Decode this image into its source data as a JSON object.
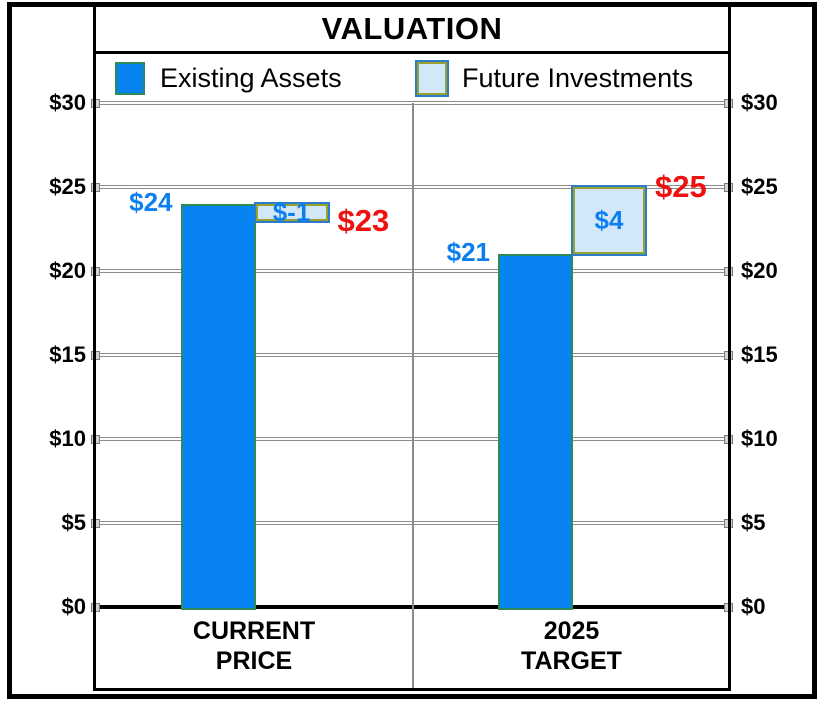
{
  "title": "VALUATION",
  "legend": {
    "items": [
      {
        "label": "Existing Assets"
      },
      {
        "label": "Future Investments"
      }
    ]
  },
  "chart_data": {
    "type": "bar",
    "subtype": "stacked-waterfall",
    "title": "VALUATION",
    "grid": true,
    "legend_position": "top",
    "y_axis_sides": "both",
    "ylim": [
      0,
      30
    ],
    "y_tick_step": 5,
    "y_tick_labels": [
      "$0",
      "$5",
      "$10",
      "$15",
      "$20",
      "$25",
      "$30"
    ],
    "categories": [
      "CURRENT PRICE",
      "2025 TARGET"
    ],
    "category_label_lines": [
      [
        "CURRENT",
        "PRICE"
      ],
      [
        "2025",
        "TARGET"
      ]
    ],
    "series": [
      {
        "name": "Existing Assets",
        "values": [
          24,
          21
        ]
      },
      {
        "name": "Future Investments",
        "values": [
          -1,
          4
        ]
      }
    ],
    "totals": [
      23,
      25
    ],
    "data_labels": {
      "existing": [
        "$24",
        "$21"
      ],
      "future": [
        "$-1",
        "$4"
      ],
      "totals": [
        "$23",
        "$25"
      ]
    }
  },
  "colors": {
    "existing_fill": "#0784f2",
    "existing_border": "#2e8b57",
    "future_fill": "#d2e8f8",
    "future_border": "#97a12b",
    "future_outline": "#2c7cc9",
    "label_blue": "#0c7ff0",
    "label_red": "#ee1111",
    "grid_line": "#8c8c8c",
    "handle_fill": "#d4d4d4",
    "handle_border": "#7a7a7a"
  }
}
